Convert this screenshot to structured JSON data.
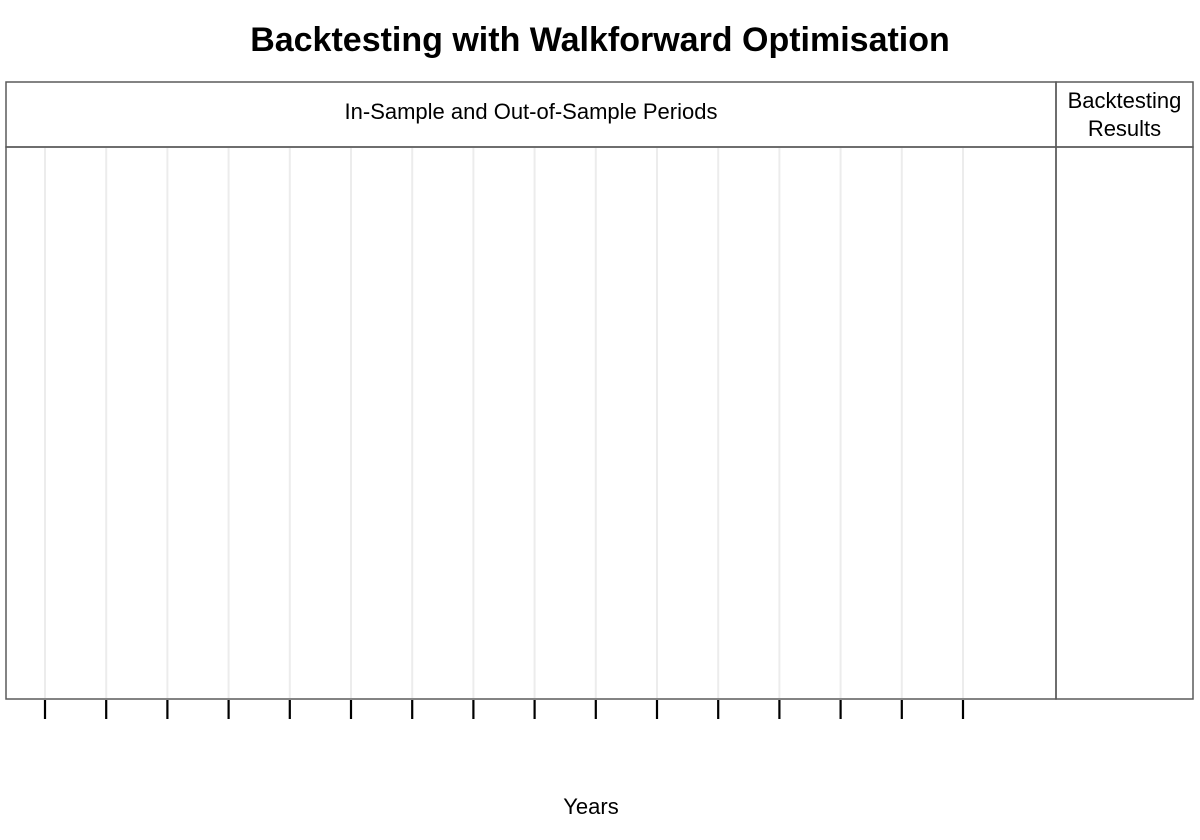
{
  "chart_data": {
    "type": "table",
    "title": "Backtesting with Walkforward Optimisation",
    "xlabel": "Years",
    "ylabel": "",
    "panels": [
      {
        "header": "In-Sample and Out-of-Sample Periods"
      },
      {
        "header_lines": [
          "Backtesting",
          "Results"
        ]
      }
    ],
    "x_tick_count": 16,
    "x_tick_labels": [],
    "series": [],
    "grid": true,
    "legend": "none",
    "colors": {
      "frame": "#5a5a5a",
      "grid": "#ececec",
      "tick": "#000000"
    }
  }
}
